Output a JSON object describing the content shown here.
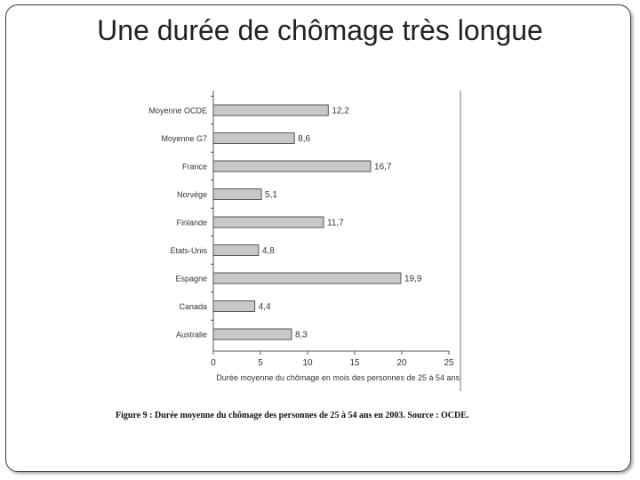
{
  "slide": {
    "title": "Une durée de chômage très longue",
    "caption": "Figure 9 : Durée moyenne du chômage des personnes de 25 à 54 ans en 2003. Source : OCDE."
  },
  "chart_data": {
    "type": "bar",
    "orientation": "horizontal",
    "categories": [
      "Moyenne OCDE",
      "Moyenne G7",
      "France",
      "Norvège",
      "Finlande",
      "Etats-Unis",
      "Espagne",
      "Canada",
      "Australie"
    ],
    "values": [
      12.2,
      8.6,
      16.7,
      5.1,
      11.7,
      4.8,
      19.9,
      4.4,
      8.3
    ],
    "value_labels": [
      "12,2",
      "8,6",
      "16,7",
      "5,1",
      "11,7",
      "4,8",
      "19,9",
      "4,4",
      "8,3"
    ],
    "xlim": [
      0,
      25
    ],
    "xticks": [
      0,
      5,
      10,
      15,
      20,
      25
    ],
    "xlabel": "Durée moyenne du chômage en mois des personnes de 25 à 54 ans",
    "grid": false,
    "colors": {
      "bar_fill": "#c8c8c8",
      "bar_stroke": "#555555",
      "axis": "#555555",
      "text": "#333333"
    }
  }
}
